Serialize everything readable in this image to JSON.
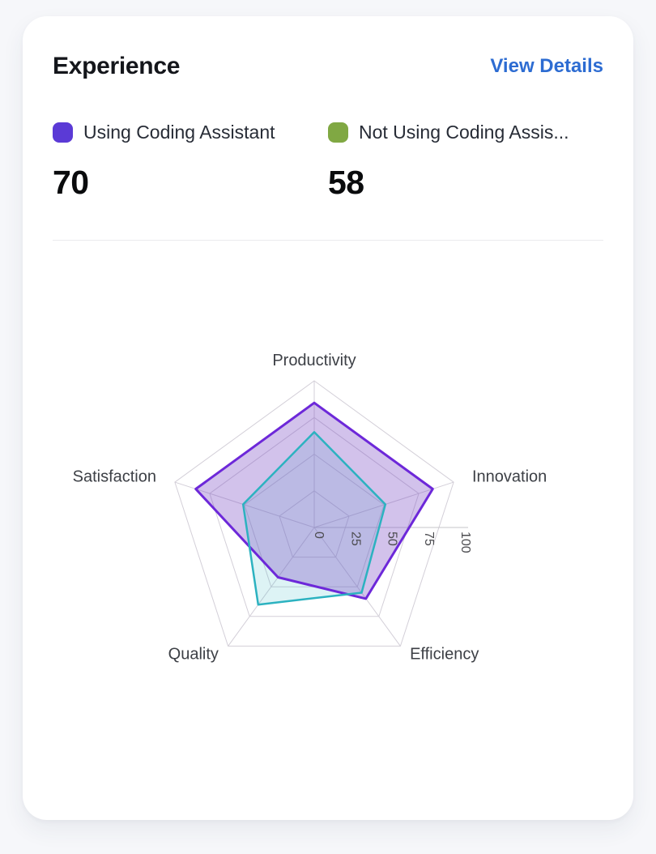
{
  "card": {
    "title": "Experience",
    "action_label": "View Details",
    "legend": [
      {
        "label": "Using Coding Assistant",
        "display_label": "Using Coding Assistant",
        "value": "70",
        "swatch_color": "#5b3ad6"
      },
      {
        "label": "Not Using Coding Assistant",
        "display_label": "Not Using Coding Assis...",
        "value": "58",
        "swatch_color": "#80a843"
      }
    ]
  },
  "chart_data": {
    "type": "radar",
    "categories": [
      "Productivity",
      "Innovation",
      "Efficiency",
      "Quality",
      "Satisfaction"
    ],
    "series": [
      {
        "name": "Using Coding Assistant",
        "values": [
          85,
          85,
          60,
          42,
          85
        ],
        "stroke": "#6d28d9",
        "stroke_width": 3,
        "fill": "#7c4dc5",
        "fill_opacity": 0.34
      },
      {
        "name": "Not Using Coding Assistant",
        "values": [
          65,
          51,
          55,
          65,
          51
        ],
        "stroke": "#2cb2c0",
        "stroke_width": 2.5,
        "fill": "#2cb2c0",
        "fill_opacity": 0.16
      }
    ],
    "max": 100,
    "radial_ticks": [
      0,
      25,
      50,
      75,
      100
    ],
    "grid": true,
    "grid_color": "#d3cfd8",
    "axis_line_color": "#c6c6ca",
    "category_label_color": "#3d4046",
    "tick_label_color": "#4c4c50",
    "legend_position": "top"
  }
}
